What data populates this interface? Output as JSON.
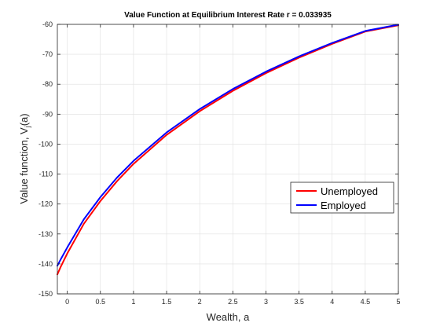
{
  "chart_data": {
    "type": "line",
    "title": "Value Function at Equilibrium Interest Rate r = 0.033935",
    "xlabel": "Wealth, a",
    "ylabel_main": "Value function, V",
    "ylabel_sub": "j",
    "ylabel_tail": "(a)",
    "xlim": [
      -0.15,
      5
    ],
    "ylim": [
      -150,
      -60
    ],
    "xticks": [
      0,
      0.5,
      1,
      1.5,
      2,
      2.5,
      3,
      3.5,
      4,
      4.5,
      5
    ],
    "xtick_labels": [
      "0",
      "0.5",
      "1",
      "1.5",
      "2",
      "2.5",
      "3",
      "3.5",
      "4",
      "4.5",
      "5"
    ],
    "yticks": [
      -150,
      -140,
      -130,
      -120,
      -110,
      -100,
      -90,
      -80,
      -70,
      -60
    ],
    "ytick_labels": [
      "-150",
      "-140",
      "-130",
      "-120",
      "-110",
      "-100",
      "-90",
      "-80",
      "-70",
      "-60"
    ],
    "grid": true,
    "legend_position": "right",
    "series": [
      {
        "name": "Unemployed",
        "color": "#ff0000",
        "x": [
          -0.15,
          -0.1,
          0,
          0.25,
          0.5,
          0.75,
          1,
          1.5,
          2,
          2.5,
          3,
          3.5,
          4,
          4.5,
          5
        ],
        "y": [
          -143.5,
          -141.0,
          -136.5,
          -126.6,
          -119.0,
          -112.4,
          -106.6,
          -96.9,
          -89.0,
          -82.2,
          -76.3,
          -71.1,
          -66.5,
          -62.4,
          -60.3
        ]
      },
      {
        "name": "Employed",
        "color": "#0000ff",
        "x": [
          -0.15,
          -0.1,
          0,
          0.25,
          0.5,
          0.75,
          1,
          1.5,
          2,
          2.5,
          3,
          3.5,
          4,
          4.5,
          5
        ],
        "y": [
          -140.6,
          -138.5,
          -134.5,
          -125.1,
          -117.7,
          -111.2,
          -105.6,
          -96.1,
          -88.3,
          -81.6,
          -75.8,
          -70.7,
          -66.2,
          -62.2,
          -60.1
        ]
      }
    ]
  }
}
